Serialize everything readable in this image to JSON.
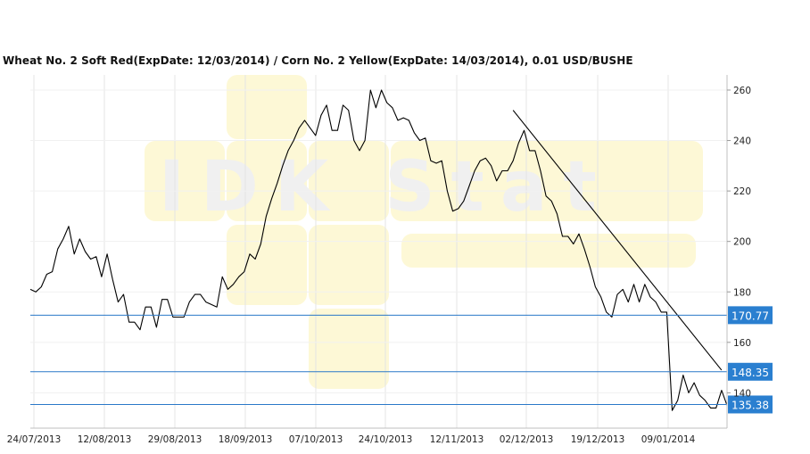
{
  "chart_data": {
    "type": "line",
    "title": "Wheat  No. 2 Soft Red(ExpDate: 12/03/2014) / Corn  No. 2 Yellow(ExpDate: 14/03/2014), 0.01 USD/BUSHE",
    "watermark": "IDK Stat",
    "xlabel": "",
    "ylabel": "",
    "ylim": [
      126,
      266
    ],
    "y_ticks": [
      140,
      160,
      180,
      200,
      220,
      240,
      260
    ],
    "x_tick_labels": [
      "24/07/2013",
      "12/08/2013",
      "29/08/2013",
      "18/09/2013",
      "07/10/2013",
      "24/10/2013",
      "12/11/2013",
      "02/12/2013",
      "19/12/2013",
      "09/01/2014"
    ],
    "grid": true,
    "series": [
      {
        "values": [
          181,
          180,
          182,
          187,
          188,
          197,
          201,
          206,
          195,
          201,
          196,
          193,
          194,
          186,
          195,
          185,
          176,
          179,
          168,
          168,
          165,
          174,
          174,
          166,
          177,
          177,
          170,
          170,
          170,
          176,
          179,
          179,
          176,
          175,
          174,
          186,
          181,
          183,
          186,
          188,
          195,
          193,
          199,
          210,
          217,
          223,
          230,
          236,
          240,
          245,
          248,
          245,
          242,
          250,
          254,
          244,
          244,
          254,
          252,
          240,
          236,
          240,
          260,
          253,
          260,
          255,
          253,
          248,
          249,
          248,
          243,
          240,
          241,
          232,
          231,
          232,
          220,
          212,
          213,
          216,
          222,
          228,
          232,
          233,
          230,
          224,
          228,
          228,
          232,
          239,
          244,
          236,
          236,
          228,
          218,
          216,
          211,
          202,
          202,
          199,
          203,
          197,
          190,
          182,
          178,
          172,
          170,
          179,
          181,
          176,
          183,
          176,
          183,
          178,
          176,
          172,
          172,
          133,
          137,
          147,
          140,
          144,
          139,
          137,
          134,
          134,
          141,
          135
        ],
        "color": "#000000"
      }
    ],
    "horizontal_levels": [
      {
        "value": 170.77,
        "label": "170.77"
      },
      {
        "value": 148.35,
        "label": "148.35"
      },
      {
        "value": 135.38,
        "label": "135.38"
      }
    ],
    "trendline": {
      "from": {
        "index": 88,
        "value": 252
      },
      "to": {
        "index": 126,
        "value": 149
      }
    },
    "colors": {
      "line": "#000000",
      "level_line": "#2a78c8",
      "label_bg": "#2a7fd0",
      "grid": "#e4e4e4",
      "watermark": "#fdf6cc"
    }
  }
}
